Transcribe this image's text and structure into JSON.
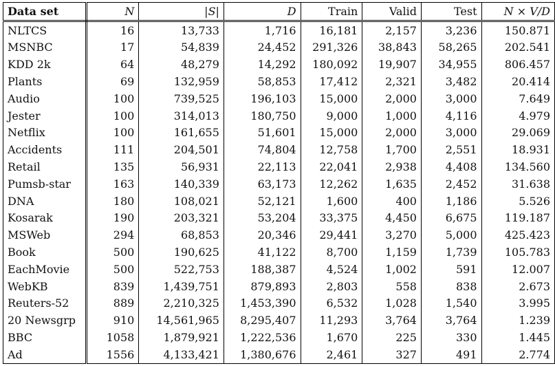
{
  "table": {
    "headers": [
      "Data set",
      "N",
      "|S|",
      "D",
      "Train",
      "Valid",
      "Test",
      "N × V/D"
    ],
    "rows": [
      [
        "NLTCS",
        "16",
        "13,733",
        "1,716",
        "16,181",
        "2,157",
        "3,236",
        "150.871"
      ],
      [
        "MSNBC",
        "17",
        "54,839",
        "24,452",
        "291,326",
        "38,843",
        "58,265",
        "202.541"
      ],
      [
        "KDD 2k",
        "64",
        "48,279",
        "14,292",
        "180,092",
        "19,907",
        "34,955",
        "806.457"
      ],
      [
        "Plants",
        "69",
        "132,959",
        "58,853",
        "17,412",
        "2,321",
        "3,482",
        "20.414"
      ],
      [
        "Audio",
        "100",
        "739,525",
        "196,103",
        "15,000",
        "2,000",
        "3,000",
        "7.649"
      ],
      [
        "Jester",
        "100",
        "314,013",
        "180,750",
        "9,000",
        "1,000",
        "4,116",
        "4.979"
      ],
      [
        "Netflix",
        "100",
        "161,655",
        "51,601",
        "15,000",
        "2,000",
        "3,000",
        "29.069"
      ],
      [
        "Accidents",
        "111",
        "204,501",
        "74,804",
        "12,758",
        "1,700",
        "2,551",
        "18.931"
      ],
      [
        "Retail",
        "135",
        "56,931",
        "22,113",
        "22,041",
        "2,938",
        "4,408",
        "134.560"
      ],
      [
        "Pumsb-star",
        "163",
        "140,339",
        "63,173",
        "12,262",
        "1,635",
        "2,452",
        "31.638"
      ],
      [
        "DNA",
        "180",
        "108,021",
        "52,121",
        "1,600",
        "400",
        "1,186",
        "5.526"
      ],
      [
        "Kosarak",
        "190",
        "203,321",
        "53,204",
        "33,375",
        "4,450",
        "6,675",
        "119.187"
      ],
      [
        "MSWeb",
        "294",
        "68,853",
        "20,346",
        "29,441",
        "3,270",
        "5,000",
        "425.423"
      ],
      [
        "Book",
        "500",
        "190,625",
        "41,122",
        "8,700",
        "1,159",
        "1,739",
        "105.783"
      ],
      [
        "EachMovie",
        "500",
        "522,753",
        "188,387",
        "4,524",
        "1,002",
        "591",
        "12.007"
      ],
      [
        "WebKB",
        "839",
        "1,439,751",
        "879,893",
        "2,803",
        "558",
        "838",
        "2.673"
      ],
      [
        "Reuters-52",
        "889",
        "2,210,325",
        "1,453,390",
        "6,532",
        "1,028",
        "1,540",
        "3.995"
      ],
      [
        "20 Newsgrp",
        "910",
        "14,561,965",
        "8,295,407",
        "11,293",
        "3,764",
        "3,764",
        "1.239"
      ],
      [
        "BBC",
        "1058",
        "1,879,921",
        "1,222,536",
        "1,670",
        "225",
        "330",
        "1.445"
      ],
      [
        "Ad",
        "1556",
        "4,133,421",
        "1,380,676",
        "2,461",
        "327",
        "491",
        "2.774"
      ]
    ]
  }
}
